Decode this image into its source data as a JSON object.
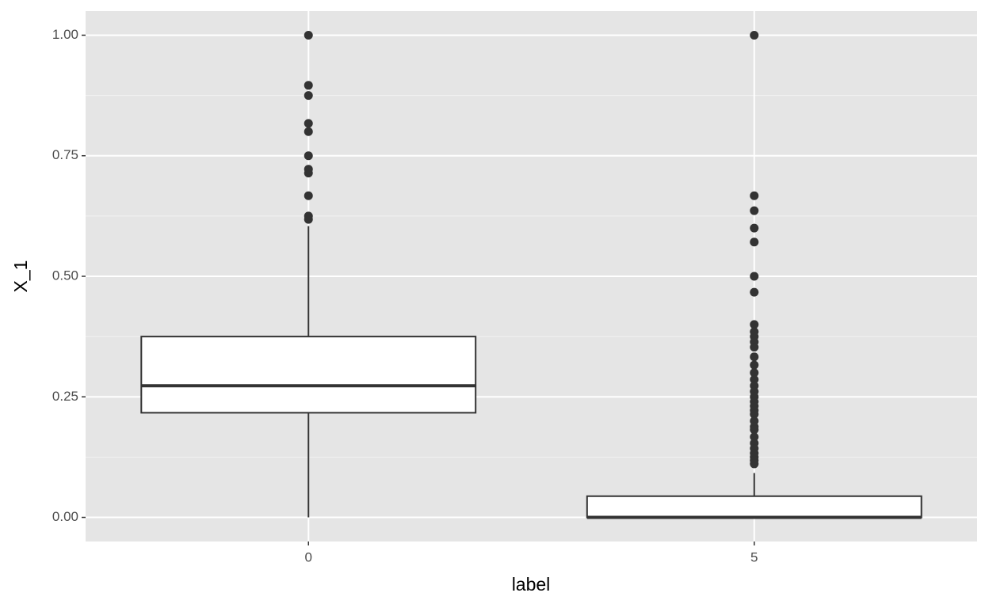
{
  "chart_data": {
    "type": "box",
    "xlabel": "label",
    "ylabel": "X_1",
    "categories": [
      "0",
      "5"
    ],
    "boxes": [
      {
        "whisker_low": 0,
        "q1": 0.217,
        "median": 0.273,
        "q3": 0.375,
        "whisker_high": 0.604,
        "outliers": [
          1.0,
          0.896,
          0.875,
          0.817,
          0.8,
          0.75,
          0.722,
          0.714,
          0.667,
          0.625,
          0.618
        ]
      },
      {
        "whisker_low": 0,
        "q1": 0,
        "median": 0,
        "q3": 0.044,
        "whisker_high": 0.092,
        "outliers": [
          1.0,
          0.667,
          0.636,
          0.6,
          0.571,
          0.5,
          0.467,
          0.4,
          0.385,
          0.375,
          0.364,
          0.353,
          0.333,
          0.316,
          0.3,
          0.286,
          0.273,
          0.261,
          0.25,
          0.24,
          0.231,
          0.222,
          0.214,
          0.2,
          0.188,
          0.182,
          0.167,
          0.154,
          0.143,
          0.133,
          0.125,
          0.118,
          0.111
        ]
      }
    ],
    "ylim": [
      -0.05,
      1.05
    ],
    "yticks": [
      {
        "value": 0,
        "label": "0.00"
      },
      {
        "value": 0.25,
        "label": "0.25"
      },
      {
        "value": 0.5,
        "label": "0.50"
      },
      {
        "value": 0.75,
        "label": "0.75"
      },
      {
        "value": 1,
        "label": "1.00"
      }
    ],
    "grid": true,
    "background": "#e5e5e5",
    "fill": "#ffffff",
    "color": "#333333"
  }
}
